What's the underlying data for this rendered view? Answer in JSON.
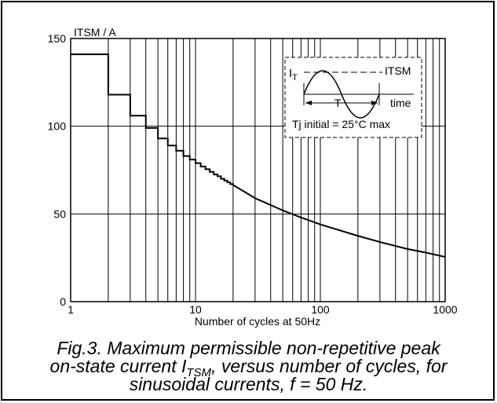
{
  "chart_data": {
    "type": "line",
    "ylabel": "ITSM / A",
    "xlabel": "Number of cycles at 50Hz",
    "x_scale": "log",
    "xlim": [
      1,
      1000
    ],
    "ylim": [
      0,
      150
    ],
    "x_ticks": [
      "1",
      "10",
      "100",
      "1000"
    ],
    "y_ticks": [
      "0",
      "50",
      "100",
      "150"
    ],
    "grid": true,
    "series": [
      {
        "x": [
          1,
          2,
          2,
          3,
          3,
          4,
          4,
          5,
          5,
          6,
          6,
          7,
          7,
          8,
          8,
          9,
          9,
          10,
          10,
          11,
          11,
          12,
          12,
          13,
          13,
          14,
          14,
          15,
          15,
          16,
          16,
          17,
          17,
          18,
          18,
          19,
          19,
          20,
          20,
          30,
          50,
          70,
          100,
          200,
          300,
          500,
          700,
          1000
        ],
        "y": [
          141,
          141,
          118,
          118,
          106,
          106,
          99,
          99,
          93,
          93,
          89,
          89,
          86,
          86,
          83,
          83,
          81,
          81,
          79,
          79,
          77,
          77,
          75.5,
          75.5,
          74,
          74,
          72.5,
          72.5,
          71.5,
          71.5,
          70,
          70,
          69,
          69,
          68,
          68,
          67,
          67,
          66.5,
          59,
          52,
          48,
          44,
          37.5,
          34,
          30,
          28,
          25.5
        ]
      }
    ],
    "inset": {
      "label_i": "I",
      "label_i_sub": "T",
      "label_itsm": "ITSM",
      "label_period": "T",
      "label_time": "time",
      "label_tj": "Tj initial = 25°C max"
    }
  },
  "caption": {
    "line1": "Fig.3.   Maximum permissible non-repetitive peak",
    "line2_pre": "on-state current I",
    "line2_sub": "TSM",
    "line2_post": ", versus number of cycles, for",
    "line3": "sinusoidal currents, f = 50 Hz."
  }
}
